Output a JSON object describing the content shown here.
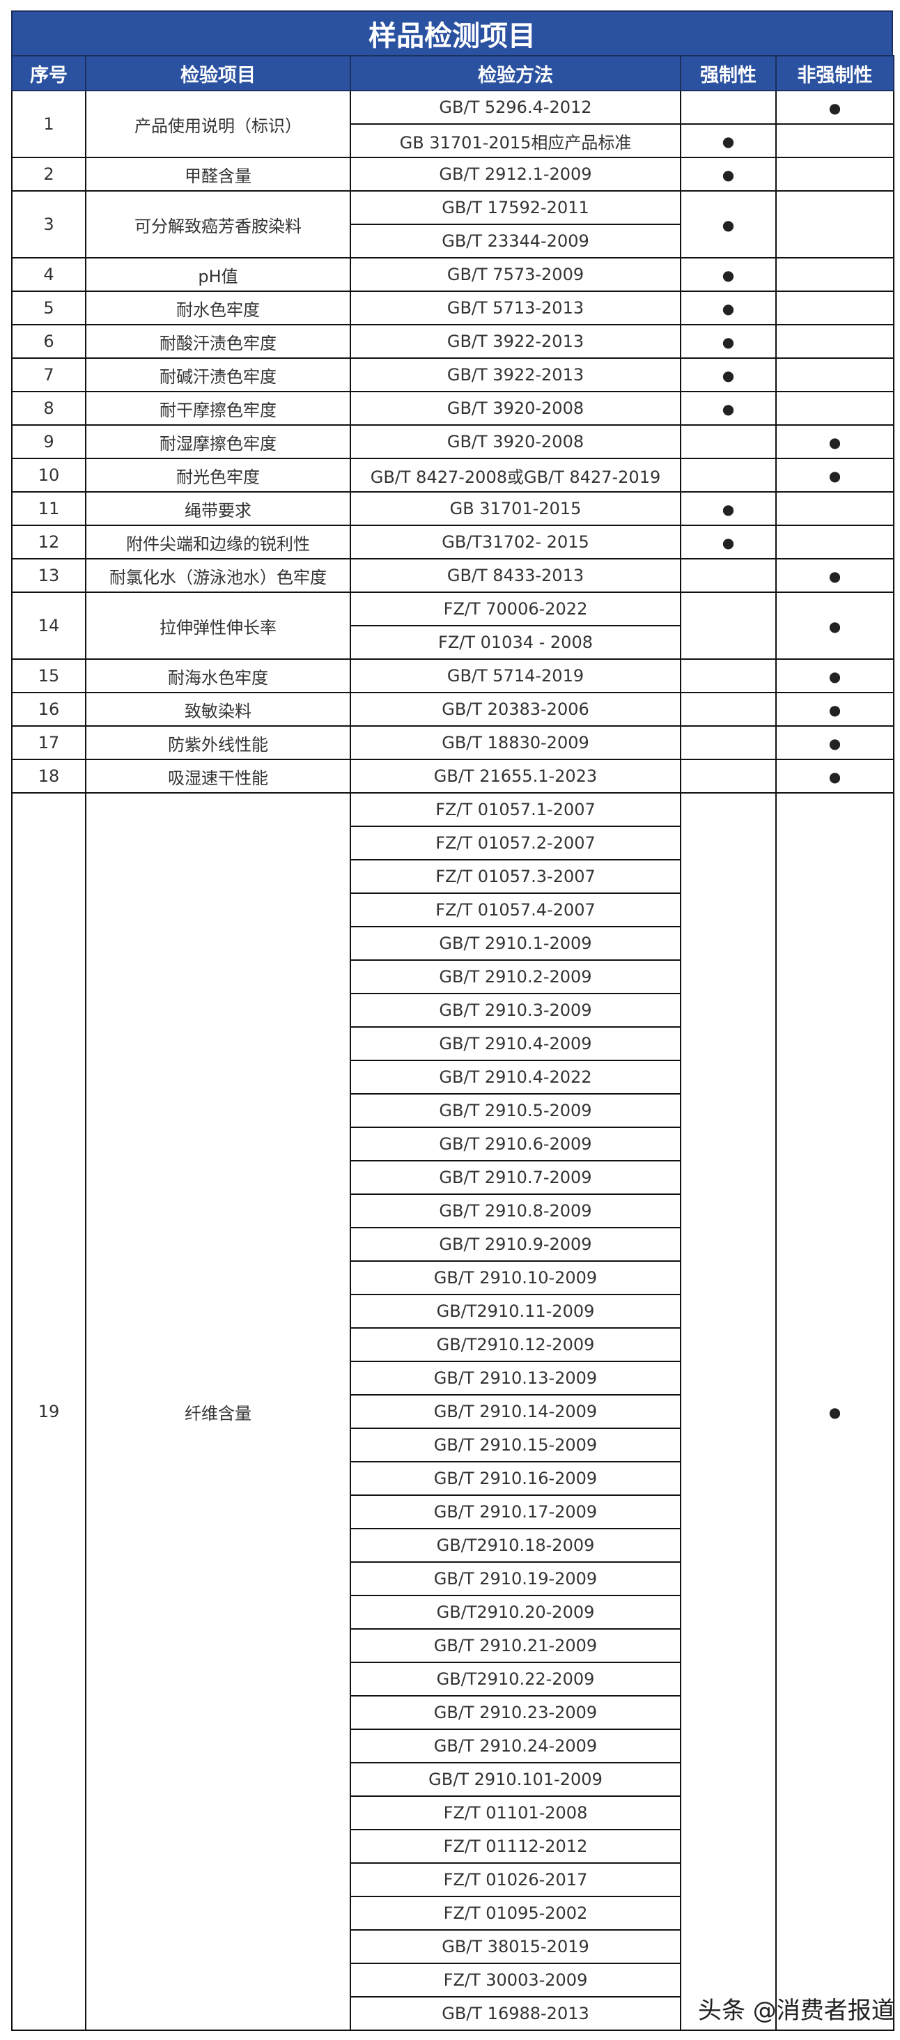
{
  "title": "样品检测项目",
  "headers": [
    "序号",
    "检验项目",
    "检验方法",
    "强制性",
    "非强制性"
  ],
  "mark_symbol": "●",
  "watermark": "头条 @消费者报道",
  "items": [
    {
      "no": "1",
      "name": "产品使用说明（标识）",
      "methods": [
        "GB/T 5296.4-2012",
        "GB 31701-2015相应产品标准"
      ],
      "marks": [
        {
          "span": 1,
          "mandatory": false,
          "non_mandatory": true
        },
        {
          "span": 1,
          "mandatory": true,
          "non_mandatory": false
        }
      ]
    },
    {
      "no": "2",
      "name": "甲醛含量",
      "methods": [
        "GB/T 2912.1-2009"
      ],
      "marks": [
        {
          "span": 1,
          "mandatory": true,
          "non_mandatory": false
        }
      ]
    },
    {
      "no": "3",
      "name": "可分解致癌芳香胺染料",
      "methods": [
        "GB/T 17592-2011",
        "GB/T 23344-2009"
      ],
      "marks": [
        {
          "span": 2,
          "mandatory": true,
          "non_mandatory": false
        }
      ]
    },
    {
      "no": "4",
      "name": "pH值",
      "methods": [
        "GB/T 7573-2009"
      ],
      "marks": [
        {
          "span": 1,
          "mandatory": true,
          "non_mandatory": false
        }
      ]
    },
    {
      "no": "5",
      "name": "耐水色牢度",
      "methods": [
        "GB/T 5713-2013"
      ],
      "marks": [
        {
          "span": 1,
          "mandatory": true,
          "non_mandatory": false
        }
      ]
    },
    {
      "no": "6",
      "name": "耐酸汗渍色牢度",
      "methods": [
        "GB/T 3922-2013"
      ],
      "marks": [
        {
          "span": 1,
          "mandatory": true,
          "non_mandatory": false
        }
      ]
    },
    {
      "no": "7",
      "name": "耐碱汗渍色牢度",
      "methods": [
        "GB/T 3922-2013"
      ],
      "marks": [
        {
          "span": 1,
          "mandatory": true,
          "non_mandatory": false
        }
      ]
    },
    {
      "no": "8",
      "name": "耐干摩擦色牢度",
      "methods": [
        "GB/T 3920-2008"
      ],
      "marks": [
        {
          "span": 1,
          "mandatory": true,
          "non_mandatory": false
        }
      ]
    },
    {
      "no": "9",
      "name": "耐湿摩擦色牢度",
      "methods": [
        "GB/T 3920-2008"
      ],
      "marks": [
        {
          "span": 1,
          "mandatory": false,
          "non_mandatory": true
        }
      ]
    },
    {
      "no": "10",
      "name": "耐光色牢度",
      "methods": [
        "GB/T 8427-2008或GB/T 8427-2019"
      ],
      "marks": [
        {
          "span": 1,
          "mandatory": false,
          "non_mandatory": true
        }
      ]
    },
    {
      "no": "11",
      "name": "绳带要求",
      "methods": [
        "GB 31701-2015"
      ],
      "marks": [
        {
          "span": 1,
          "mandatory": true,
          "non_mandatory": false
        }
      ]
    },
    {
      "no": "12",
      "name": "附件尖端和边缘的锐利性",
      "methods": [
        "GB/T31702- 2015"
      ],
      "marks": [
        {
          "span": 1,
          "mandatory": true,
          "non_mandatory": false
        }
      ]
    },
    {
      "no": "13",
      "name": "耐氯化水（游泳池水）色牢度",
      "methods": [
        "GB/T 8433-2013"
      ],
      "marks": [
        {
          "span": 1,
          "mandatory": false,
          "non_mandatory": true
        }
      ]
    },
    {
      "no": "14",
      "name": "拉伸弹性伸长率",
      "methods": [
        "FZ/T 70006-2022",
        "FZ/T 01034 - 2008"
      ],
      "marks": [
        {
          "span": 2,
          "mandatory": false,
          "non_mandatory": true
        }
      ]
    },
    {
      "no": "15",
      "name": "耐海水色牢度",
      "methods": [
        "GB/T 5714-2019"
      ],
      "marks": [
        {
          "span": 1,
          "mandatory": false,
          "non_mandatory": true
        }
      ]
    },
    {
      "no": "16",
      "name": "致敏染料",
      "methods": [
        "GB/T 20383-2006"
      ],
      "marks": [
        {
          "span": 1,
          "mandatory": false,
          "non_mandatory": true
        }
      ]
    },
    {
      "no": "17",
      "name": "防紫外线性能",
      "methods": [
        "GB/T 18830-2009"
      ],
      "marks": [
        {
          "span": 1,
          "mandatory": false,
          "non_mandatory": true
        }
      ]
    },
    {
      "no": "18",
      "name": "吸湿速干性能",
      "methods": [
        "GB/T 21655.1-2023"
      ],
      "marks": [
        {
          "span": 1,
          "mandatory": false,
          "non_mandatory": true
        }
      ]
    },
    {
      "no": "19",
      "name": "纤维含量",
      "methods": [
        "FZ/T 01057.1-2007",
        "FZ/T 01057.2-2007",
        "FZ/T 01057.3-2007",
        "FZ/T 01057.4-2007",
        "GB/T 2910.1-2009",
        "GB/T 2910.2-2009",
        "GB/T 2910.3-2009",
        "GB/T 2910.4-2009",
        "GB/T 2910.4-2022",
        "GB/T 2910.5-2009",
        "GB/T 2910.6-2009",
        "GB/T 2910.7-2009",
        "GB/T 2910.8-2009",
        "GB/T 2910.9-2009",
        "GB/T 2910.10-2009",
        "GB/T2910.11-2009",
        "GB/T2910.12-2009",
        "GB/T 2910.13-2009",
        "GB/T 2910.14-2009",
        "GB/T 2910.15-2009",
        "GB/T 2910.16-2009",
        "GB/T 2910.17-2009",
        "GB/T2910.18-2009",
        "GB/T 2910.19-2009",
        "GB/T2910.20-2009",
        "GB/T 2910.21-2009",
        "GB/T2910.22-2009",
        "GB/T 2910.23-2009",
        "GB/T 2910.24-2009",
        "GB/T 2910.101-2009",
        "FZ/T 01101-2008",
        "FZ/T 01112-2012",
        "FZ/T 01026-2017",
        "FZ/T 01095-2002",
        "GB/T 38015-2019",
        "FZ/T 30003-2009",
        "GB/T 16988-2013"
      ],
      "marks": [
        {
          "span": 37,
          "mandatory": false,
          "non_mandatory": true
        }
      ]
    }
  ]
}
